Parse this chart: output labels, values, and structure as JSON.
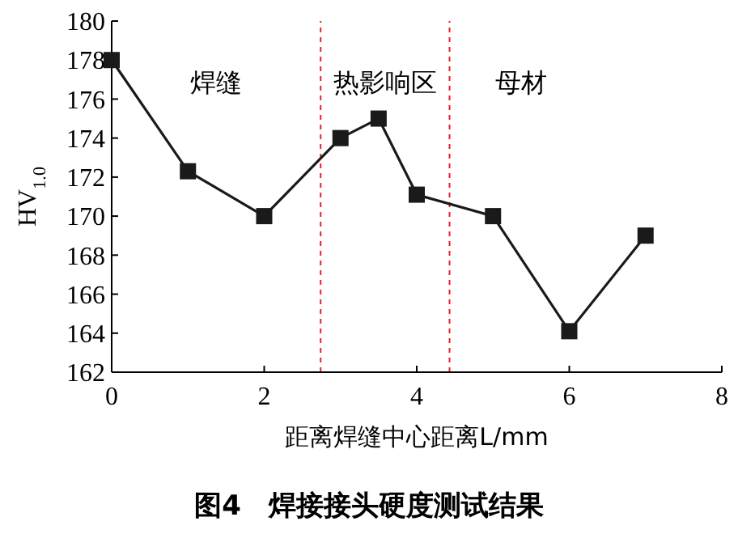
{
  "chart_data": {
    "type": "line",
    "title": "图4　焊接接头硬度测试结果",
    "xlabel": "距离焊缝中心距离L/mm",
    "ylabel": "HV$_{1.0}$",
    "x": [
      0,
      1,
      2,
      3,
      3.5,
      4,
      5,
      6,
      7
    ],
    "series": [
      {
        "color": "#1a1a1a",
        "values": [
          178,
          172.3,
          170,
          174,
          175,
          171.1,
          170,
          164.1,
          169
        ]
      }
    ],
    "xlim": [
      0,
      8
    ],
    "xticks": [
      0,
      2,
      4,
      6,
      8
    ],
    "ylim": [
      162,
      180
    ],
    "yticks": [
      162,
      164,
      166,
      168,
      170,
      172,
      174,
      176,
      178,
      180
    ],
    "marker": "square",
    "line_style": "solid",
    "grid": false,
    "ref_lines": [
      {
        "axis": "x",
        "value": 2.74,
        "color": "#e8202a",
        "line_style": "dashed"
      },
      {
        "axis": "x",
        "value": 4.43,
        "color": "#e8202a",
        "line_style": "dashed"
      }
    ],
    "annotations": [
      "焊缝",
      "热影响区",
      "母材"
    ]
  }
}
